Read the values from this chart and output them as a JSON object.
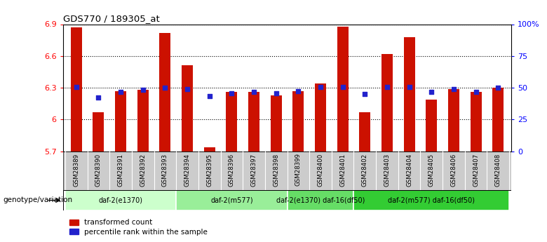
{
  "title": "GDS770 / 189305_at",
  "samples": [
    "GSM28389",
    "GSM28390",
    "GSM28391",
    "GSM28392",
    "GSM28393",
    "GSM28394",
    "GSM28395",
    "GSM28396",
    "GSM28397",
    "GSM28398",
    "GSM28399",
    "GSM28400",
    "GSM28401",
    "GSM28402",
    "GSM28403",
    "GSM28404",
    "GSM28405",
    "GSM28406",
    "GSM28407",
    "GSM28408"
  ],
  "bar_values": [
    6.87,
    6.07,
    6.27,
    6.28,
    6.82,
    6.51,
    5.74,
    6.26,
    6.26,
    6.23,
    6.27,
    6.34,
    6.88,
    6.07,
    6.62,
    6.78,
    6.19,
    6.29,
    6.26,
    6.3
  ],
  "dot_values": [
    6.31,
    6.21,
    6.26,
    6.28,
    6.3,
    6.29,
    6.22,
    6.25,
    6.26,
    6.25,
    6.27,
    6.31,
    6.31,
    6.24,
    6.31,
    6.31,
    6.26,
    6.29,
    6.26,
    6.3
  ],
  "ylim_left": [
    5.7,
    6.9
  ],
  "ylim_right": [
    0,
    100
  ],
  "yticks_left": [
    5.7,
    6.0,
    6.3,
    6.6,
    6.9
  ],
  "ytick_labels_left": [
    "5.7",
    "6",
    "6.3",
    "6.6",
    "6.9"
  ],
  "yticks_right": [
    0,
    25,
    50,
    75,
    100
  ],
  "ytick_labels_right": [
    "0",
    "25",
    "50",
    "75",
    "100%"
  ],
  "bar_color": "#CC1100",
  "dot_color": "#2222CC",
  "bar_baseline": 5.7,
  "groups": [
    {
      "label": "daf-2(e1370)",
      "start": 0,
      "end": 5
    },
    {
      "label": "daf-2(m577)",
      "start": 5,
      "end": 10
    },
    {
      "label": "daf-2(e1370) daf-16(df50)",
      "start": 10,
      "end": 13
    },
    {
      "label": "daf-2(m577) daf-16(df50)",
      "start": 13,
      "end": 20
    }
  ],
  "group_colors": [
    "#CCFFCC",
    "#99EE99",
    "#66DD66",
    "#33CC33"
  ],
  "sample_bg_color": "#CCCCCC",
  "group_label": "genotype/variation",
  "legend_bar_label": "transformed count",
  "legend_dot_label": "percentile rank within the sample",
  "background_color": "#FFFFFF"
}
